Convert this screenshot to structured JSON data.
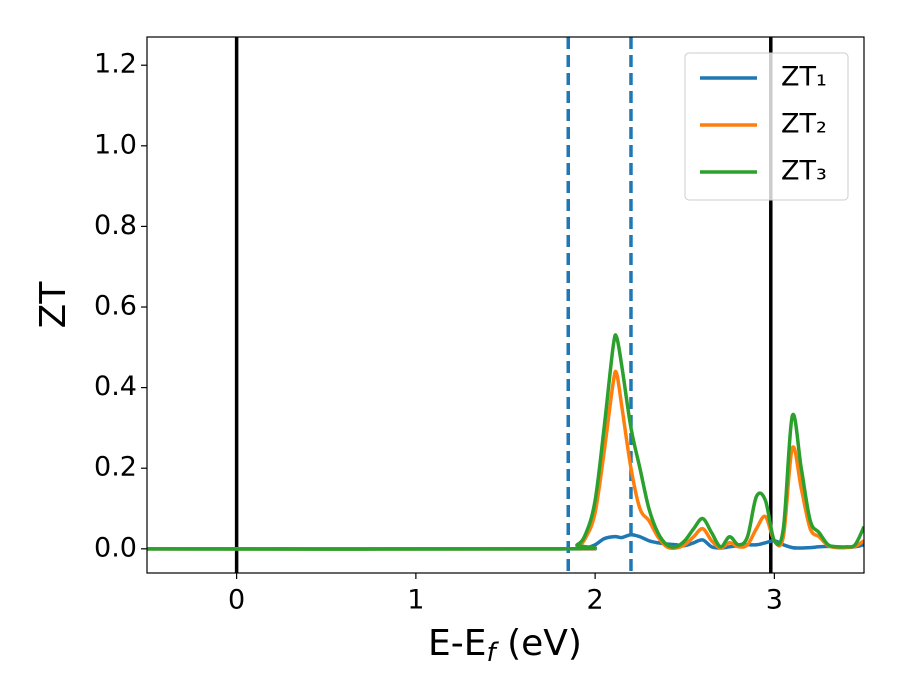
{
  "chart_data": {
    "type": "line",
    "x_label": [
      "E-E",
      "f",
      " (eV)"
    ],
    "y_label": "ZT",
    "xlim": [
      -0.5,
      3.5
    ],
    "ylim": [
      -0.06,
      1.27
    ],
    "xticks": [
      0,
      1,
      2,
      3
    ],
    "yticks": [
      {
        "value": 0,
        "label": "0.0"
      },
      0.2,
      0.4,
      0.6,
      0.8,
      {
        "value": 1,
        "label": "1.0"
      },
      1.2
    ],
    "legend": "upper right",
    "x": [
      -0.5,
      1.8,
      1.9,
      1.95,
      2.0,
      2.05,
      2.1,
      2.12,
      2.15,
      2.2,
      2.25,
      2.3,
      2.35,
      2.4,
      2.45,
      2.5,
      2.55,
      2.6,
      2.65,
      2.7,
      2.75,
      2.8,
      2.85,
      2.9,
      2.95,
      3.0,
      3.05,
      3.1,
      3.15,
      3.2,
      3.25,
      3.3,
      3.35,
      3.4,
      3.45,
      3.5
    ],
    "series": [
      {
        "name": "ZT₁",
        "color": "#1f77b4",
        "values": [
          0,
          0,
          0,
          0.002,
          0.01,
          0.025,
          0.03,
          0.03,
          0.028,
          0.035,
          0.03,
          0.02,
          0.015,
          0.012,
          0.01,
          0.008,
          0.015,
          0.022,
          0.005,
          0.002,
          0.005,
          0.008,
          0.01,
          0.01,
          0.015,
          0.02,
          0.01,
          0.003,
          0.002,
          0.003,
          0.005,
          0.006,
          0.005,
          0.004,
          0.005,
          0.01
        ]
      },
      {
        "name": "ZT₂",
        "color": "#ff7f0e",
        "values": [
          0,
          0,
          0.005,
          0.03,
          0.09,
          0.24,
          0.41,
          0.435,
          0.35,
          0.2,
          0.1,
          0.07,
          0.03,
          0.005,
          0.002,
          0.01,
          0.03,
          0.05,
          0.02,
          0.002,
          0.015,
          0.005,
          0.01,
          0.05,
          0.08,
          0.02,
          0.03,
          0.25,
          0.15,
          0.05,
          0.03,
          0.008,
          0.003,
          0.003,
          0.006,
          0.02
        ]
      },
      {
        "name": "ZT₃",
        "color": "#2ca02c",
        "values": [
          0,
          0,
          0.01,
          0.04,
          0.12,
          0.3,
          0.5,
          0.525,
          0.45,
          0.3,
          0.2,
          0.1,
          0.04,
          0.01,
          0.005,
          0.02,
          0.05,
          0.075,
          0.04,
          0.005,
          0.03,
          0.01,
          0.03,
          0.13,
          0.12,
          0.02,
          0.05,
          0.33,
          0.2,
          0.07,
          0.04,
          0.01,
          0.005,
          0.005,
          0.01,
          0.055
        ]
      }
    ],
    "vlines": [
      {
        "x": 0,
        "color": "#000000",
        "style": "solid"
      },
      {
        "x": 2.98,
        "color": "#000000",
        "style": "solid"
      },
      {
        "x": 1.85,
        "color": "#1f77b4",
        "style": "dashed"
      },
      {
        "x": 2.2,
        "color": "#1f77b4",
        "style": "dashed"
      }
    ]
  }
}
